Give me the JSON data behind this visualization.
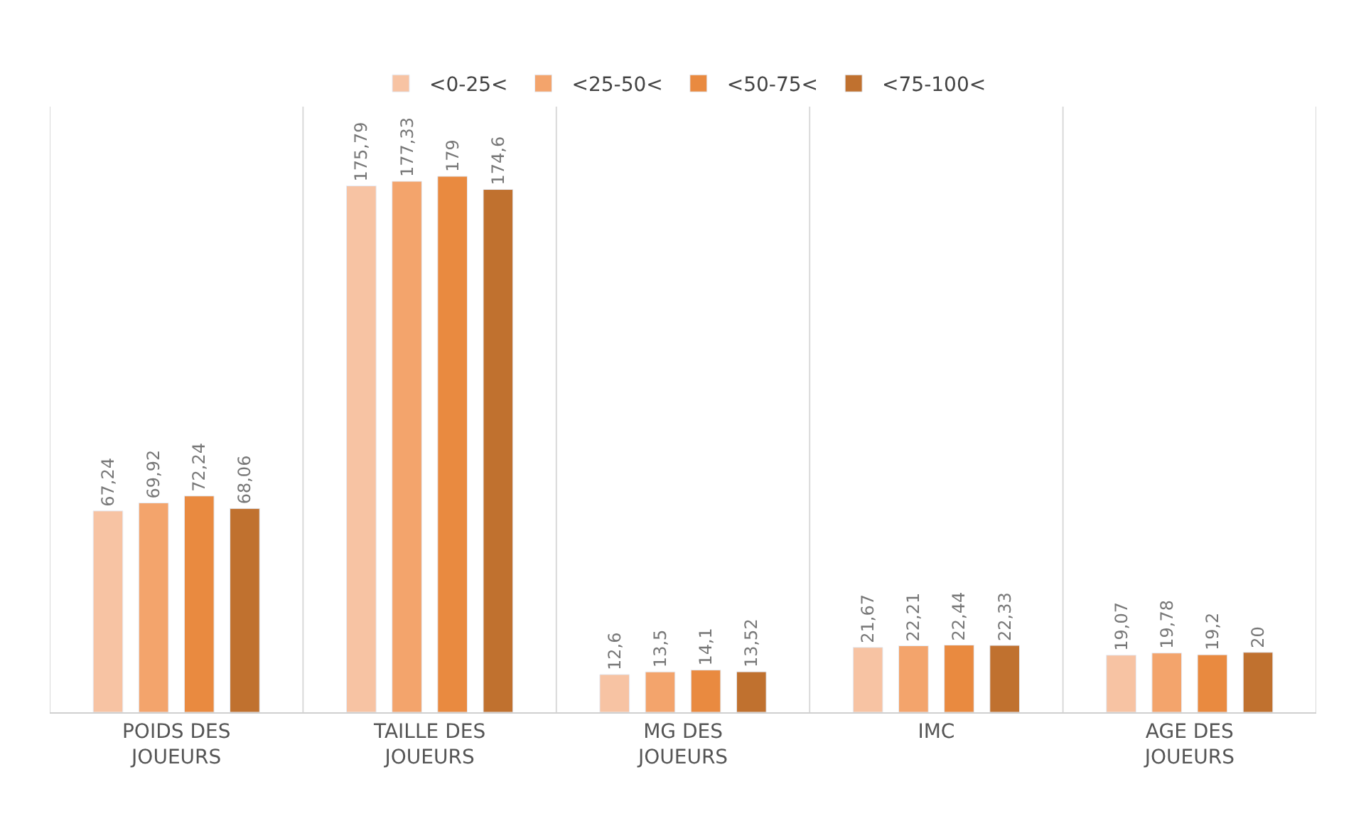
{
  "chart_data": {
    "type": "bar",
    "categories": [
      "POIDS DES JOUEURS",
      "TAILLE DES JOUEURS",
      "MG DES JOUEURS",
      "IMC",
      "AGE DES JOUEURS"
    ],
    "series": [
      {
        "name": "<0-25<",
        "color": "#f7c3a3",
        "values": [
          67.24,
          175.79,
          12.6,
          21.67,
          19.07
        ],
        "value_labels": [
          "67,24",
          "175,79",
          "12,6",
          "21,67",
          "19,07"
        ]
      },
      {
        "name": "<25-50<",
        "color": "#f3a46c",
        "values": [
          69.92,
          177.33,
          13.5,
          22.21,
          19.78
        ],
        "value_labels": [
          "69,92",
          "177,33",
          "13,5",
          "22,21",
          "19,78"
        ]
      },
      {
        "name": "<50-75<",
        "color": "#e98a40",
        "values": [
          72.24,
          179,
          14.1,
          22.44,
          19.2
        ],
        "value_labels": [
          "72,24",
          "179",
          "14,1",
          "22,44",
          "19,2"
        ]
      },
      {
        "name": "<75-100<",
        "color": "#c0712f",
        "values": [
          68.06,
          174.6,
          13.52,
          22.33,
          20
        ],
        "value_labels": [
          "68,06",
          "174,6",
          "13,52",
          "22,33",
          "20"
        ]
      }
    ],
    "legend": "top",
    "grid": "x"
  }
}
